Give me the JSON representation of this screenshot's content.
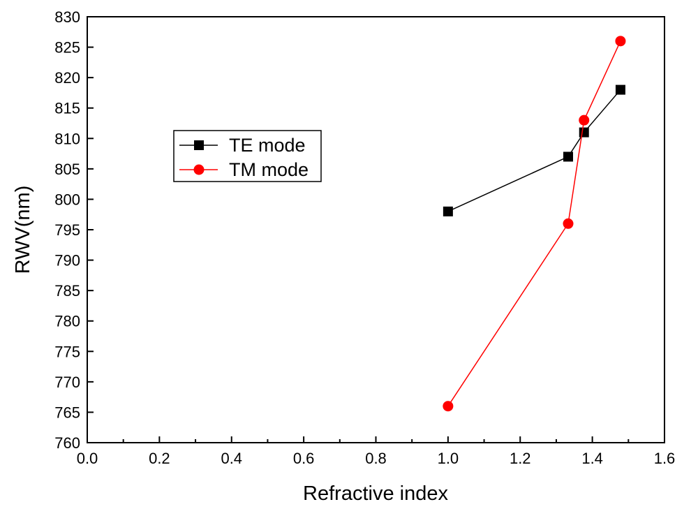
{
  "chart_data": {
    "type": "line",
    "title": "",
    "xlabel": "Refractive index",
    "ylabel": "RWV(nm)",
    "xlim": [
      0.0,
      1.6
    ],
    "ylim": [
      760,
      830
    ],
    "xticks": [
      "0.0",
      "0.2",
      "0.4",
      "0.6",
      "0.8",
      "1.0",
      "1.2",
      "1.4",
      "1.6"
    ],
    "yticks": [
      "760",
      "765",
      "770",
      "775",
      "780",
      "785",
      "790",
      "795",
      "800",
      "805",
      "810",
      "815",
      "820",
      "825",
      "830"
    ],
    "grid": false,
    "legend_position": "center-left",
    "series": [
      {
        "name": "TE mode",
        "color": "#000000",
        "marker": "square",
        "x": [
          1.0,
          1.333,
          1.377,
          1.478
        ],
        "y": [
          798,
          807,
          811,
          818
        ]
      },
      {
        "name": "TM mode",
        "color": "#ff0000",
        "marker": "circle",
        "x": [
          1.0,
          1.333,
          1.377,
          1.478
        ],
        "y": [
          766,
          796,
          813,
          826
        ]
      }
    ]
  }
}
